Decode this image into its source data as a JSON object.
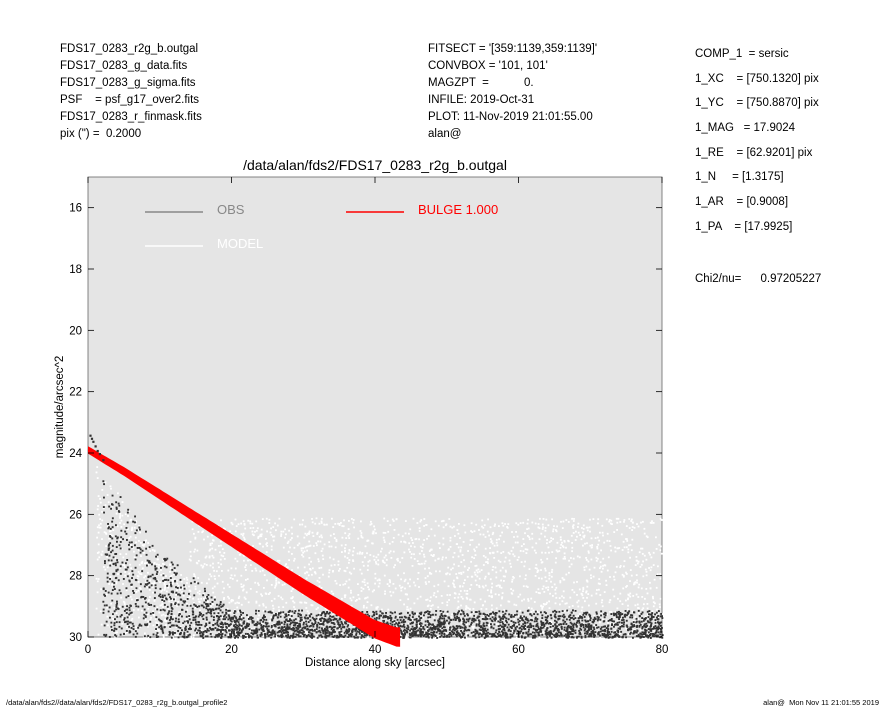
{
  "header_left": [
    "FDS17_0283_r2g_b.outgal",
    "FDS17_0283_g_data.fits",
    "FDS17_0283_g_sigma.fits",
    "PSF    = psf_g17_over2.fits",
    "FDS17_0283_r_finmask.fits",
    "pix (\") =  0.2000"
  ],
  "header_mid": [
    "FITSECT = '[359:1139,359:1139]'",
    "CONVBOX = '101, 101'",
    "MAGZPT  =           0.",
    "INFILE: 2019-Oct-31",
    "PLOT: 11-Nov-2019 21:01:55.00",
    "alan@"
  ],
  "params": [
    "COMP_1  = sersic",
    "1_XC    = [750.1320] pix",
    "1_YC    = [750.8870] pix",
    "1_MAG   = 17.9024",
    "1_RE    = [62.9201] pix",
    "1_N     = [1.3175]",
    "1_AR    = [0.9008]",
    "1_PA    = [17.9925]"
  ],
  "chi2": "Chi2/nu=      0.97205227",
  "footer_left": "/data/alan/fds2//data/alan/fds2/FDS17_0283_r2g_b.outgal_profile2",
  "footer_right": "alan@  Mon Nov 11 21:01:55 2019",
  "colors": {
    "plot_bg": "#e5e5e5",
    "obs": "#888888",
    "model": "#ffffff",
    "bulge": "#ff0000",
    "obs_points": "#333333"
  },
  "chart_data": {
    "type": "scatter",
    "title": "/data/alan/fds2/FDS17_0283_r2g_b.outgal",
    "xlabel": "Distance along sky [arcsec]",
    "ylabel": "magnitude/arcsec^2",
    "xlim": [
      0,
      80
    ],
    "ylim": [
      30,
      15
    ],
    "xticks": [
      "0",
      "20",
      "40",
      "60",
      "80"
    ],
    "yticks": [
      "16",
      "18",
      "20",
      "22",
      "24",
      "26",
      "28",
      "30"
    ],
    "legend": [
      {
        "name": "OBS",
        "color": "#888888"
      },
      {
        "name": "MODEL",
        "color": "#ffffff"
      },
      {
        "name": "BULGE  1.000",
        "color": "#ff0000"
      }
    ],
    "bulge_band": {
      "x": [
        0,
        5,
        10,
        15,
        20,
        25,
        30,
        35,
        40,
        43
      ],
      "y": [
        23.9,
        24.6,
        25.35,
        26.1,
        26.85,
        27.6,
        28.35,
        29.05,
        29.75,
        30.0
      ]
    },
    "model_floor_mag": 26.1,
    "central_obs": {
      "x": [
        0.2,
        0.4,
        0.6,
        0.9,
        1.2,
        1.5,
        2.0
      ],
      "y": [
        23.4,
        23.5,
        23.6,
        23.75,
        23.9,
        24.0,
        24.2
      ]
    }
  }
}
